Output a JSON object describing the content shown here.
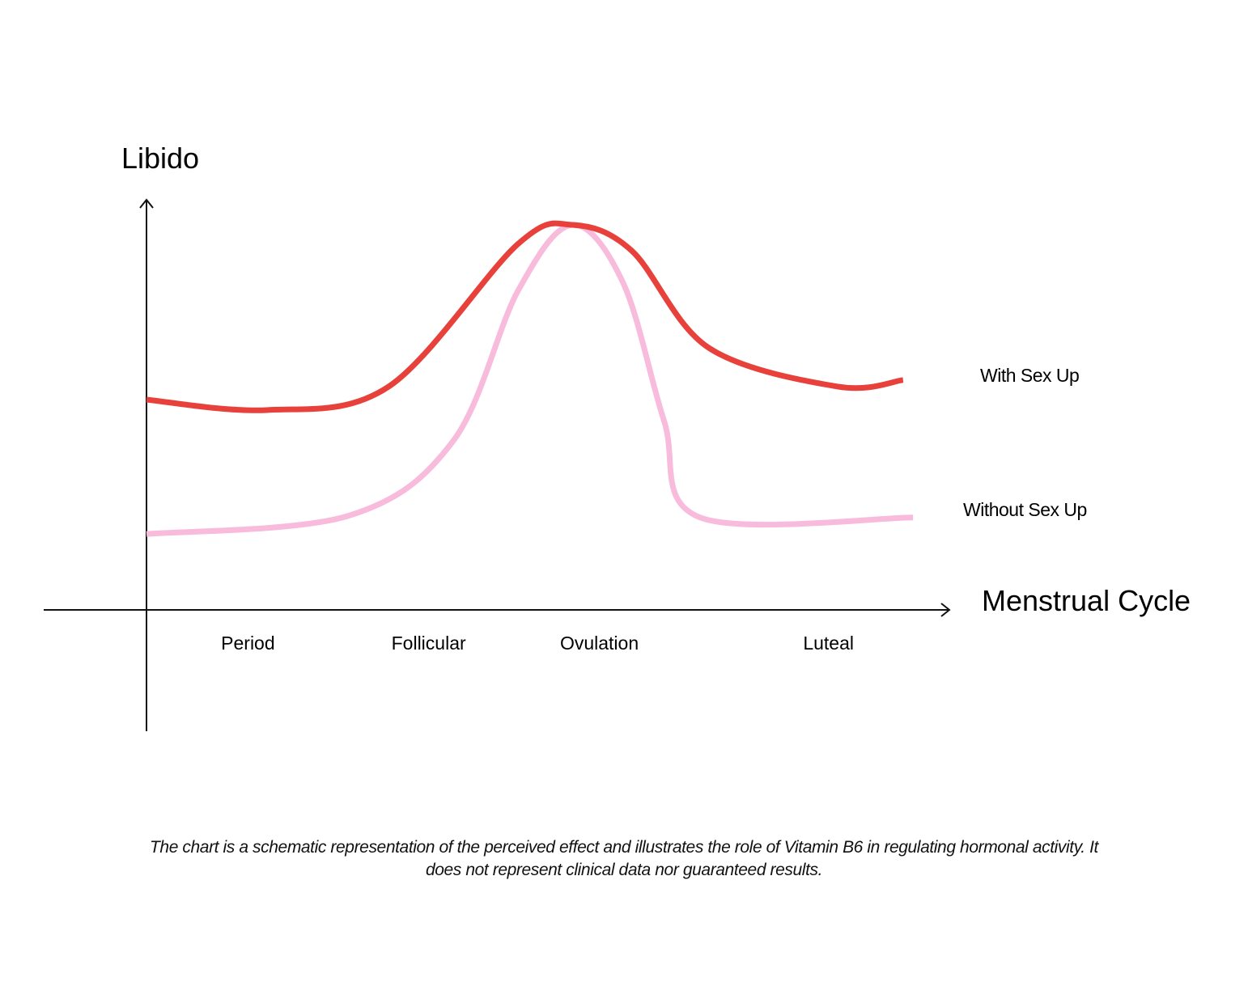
{
  "chart_data": {
    "type": "line",
    "xlabel": "Menstrual Cycle",
    "ylabel": "Libido",
    "xlim": [
      0,
      100
    ],
    "ylim": [
      0,
      100
    ],
    "grid": false,
    "phases": [
      {
        "label": "Period",
        "x": 13.2
      },
      {
        "label": "Follicular",
        "x": 36.7
      },
      {
        "label": "Ovulation",
        "x": 58.9
      },
      {
        "label": "Luteal",
        "x": 88.7
      }
    ],
    "series": [
      {
        "name": "With Sex Up",
        "color": "#e8403a",
        "points": [
          [
            0,
            54.6
          ],
          [
            15.7,
            51.9
          ],
          [
            31.5,
            58
          ],
          [
            48.3,
            95
          ],
          [
            55.4,
            100
          ],
          [
            63.1,
            93.3
          ],
          [
            73.1,
            68.1
          ],
          [
            89.9,
            58
          ],
          [
            98.4,
            59.7
          ]
        ]
      },
      {
        "name": "Without Sex Up",
        "color": "#f8bbdc",
        "points": [
          [
            0,
            19.7
          ],
          [
            26.2,
            24.4
          ],
          [
            39.9,
            43.9
          ],
          [
            48.3,
            82.8
          ],
          [
            55.4,
            100
          ],
          [
            62,
            84.9
          ],
          [
            67.3,
            49.2
          ],
          [
            72,
            24
          ],
          [
            99.7,
            24
          ]
        ]
      }
    ],
    "legend_placement": "right"
  },
  "caption": "The chart is a schematic representation of the perceived effect and illustrates the role of Vitamin B6 in regulating hormonal activity. It does not represent clinical data nor guaranteed results."
}
